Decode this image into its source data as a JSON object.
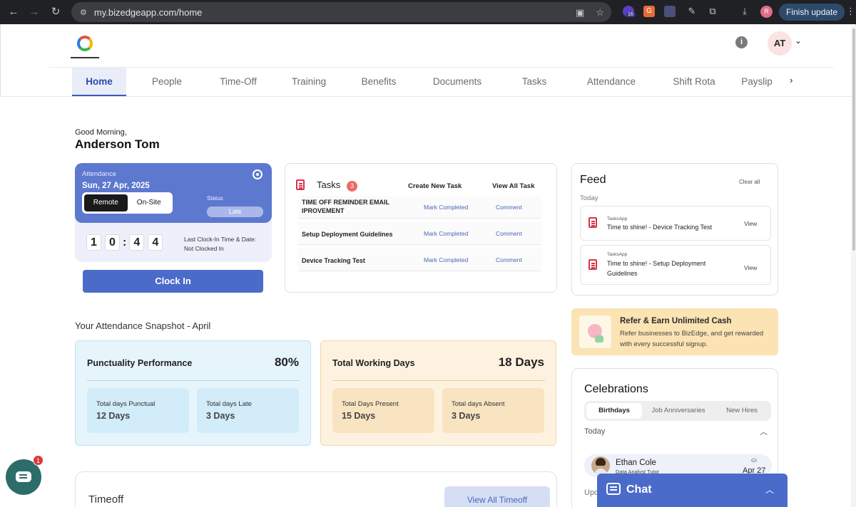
{
  "browser": {
    "url": "my.bizedgeapp.com/home",
    "finish_update": "Finish update",
    "ext_badge": "16",
    "profile_initial": "R"
  },
  "header": {
    "avatar_initials": "AT",
    "tabs": [
      "Home",
      "People",
      "Time-Off",
      "Training",
      "Benefits",
      "Documents",
      "Tasks",
      "Attendance",
      "Shift Rota",
      "Payslip"
    ],
    "active_tab": "Home"
  },
  "greeting": {
    "salutation": "Good Morning,",
    "name": "Anderson Tom"
  },
  "attendance": {
    "label": "Attendance",
    "date": "Sun, 27 Apr, 2025",
    "mode_remote": "Remote",
    "mode_onsite": "On-Site",
    "status_label": "Status",
    "status_value": "Late",
    "clock_digits": [
      "1",
      "0",
      "4",
      "4"
    ],
    "colon": ":",
    "last_clock_label": "Last Clock-In Time & Date:",
    "last_clock_value": "Not Clocked In",
    "clock_in_button": "Clock In"
  },
  "tasks": {
    "title": "Tasks",
    "count": "3",
    "create_link": "Create New Task",
    "view_all_link": "View All Task",
    "mark_label": "Mark Completed",
    "comment_label": "Comment",
    "items": [
      "TIME OFF REMINDER EMAIL IPROVEMENT",
      "Setup Deployment Guidelines",
      "Device Tracking Test"
    ]
  },
  "feed": {
    "title": "Feed",
    "clear_all": "Clear all",
    "today": "Today",
    "items": [
      {
        "source": "TasksApp",
        "text": "Time to shine! - Device Tracking Test",
        "action": "View"
      },
      {
        "source": "TasksApp",
        "text": "Time to shine! - Setup Deployment Guidelines",
        "action": "View"
      }
    ]
  },
  "refer": {
    "title": "Refer & Earn Unlimited Cash",
    "text": "Refer businesses to BizEdge, and get rewarded with every successful signup."
  },
  "snapshot": {
    "title": "Your Attendance Snapshot - April",
    "punctuality": {
      "title": "Punctuality Performance",
      "value": "80%",
      "sub1_label": "Total days Punctual",
      "sub1_value": "12 Days",
      "sub2_label": "Total days Late",
      "sub2_value": "3 Days"
    },
    "working": {
      "title": "Total Working Days",
      "value": "18 Days",
      "sub1_label": "Total Days Present",
      "sub1_value": "15 Days",
      "sub2_label": "Total days Absent",
      "sub2_value": "3 Days"
    }
  },
  "celebrations": {
    "title": "Celebrations",
    "tabs": [
      "Birthdays",
      "Job Anniversaries",
      "New Hires"
    ],
    "today": "Today",
    "person": {
      "name": "Ethan Cole",
      "role": "Data Analyst Tutor",
      "date": "Apr 27"
    },
    "upcoming": "Upcoming"
  },
  "timeoff": {
    "title": "Timeoff",
    "view_all": "View All Timeoff"
  },
  "chat": {
    "label": "Chat",
    "badge": "1"
  }
}
